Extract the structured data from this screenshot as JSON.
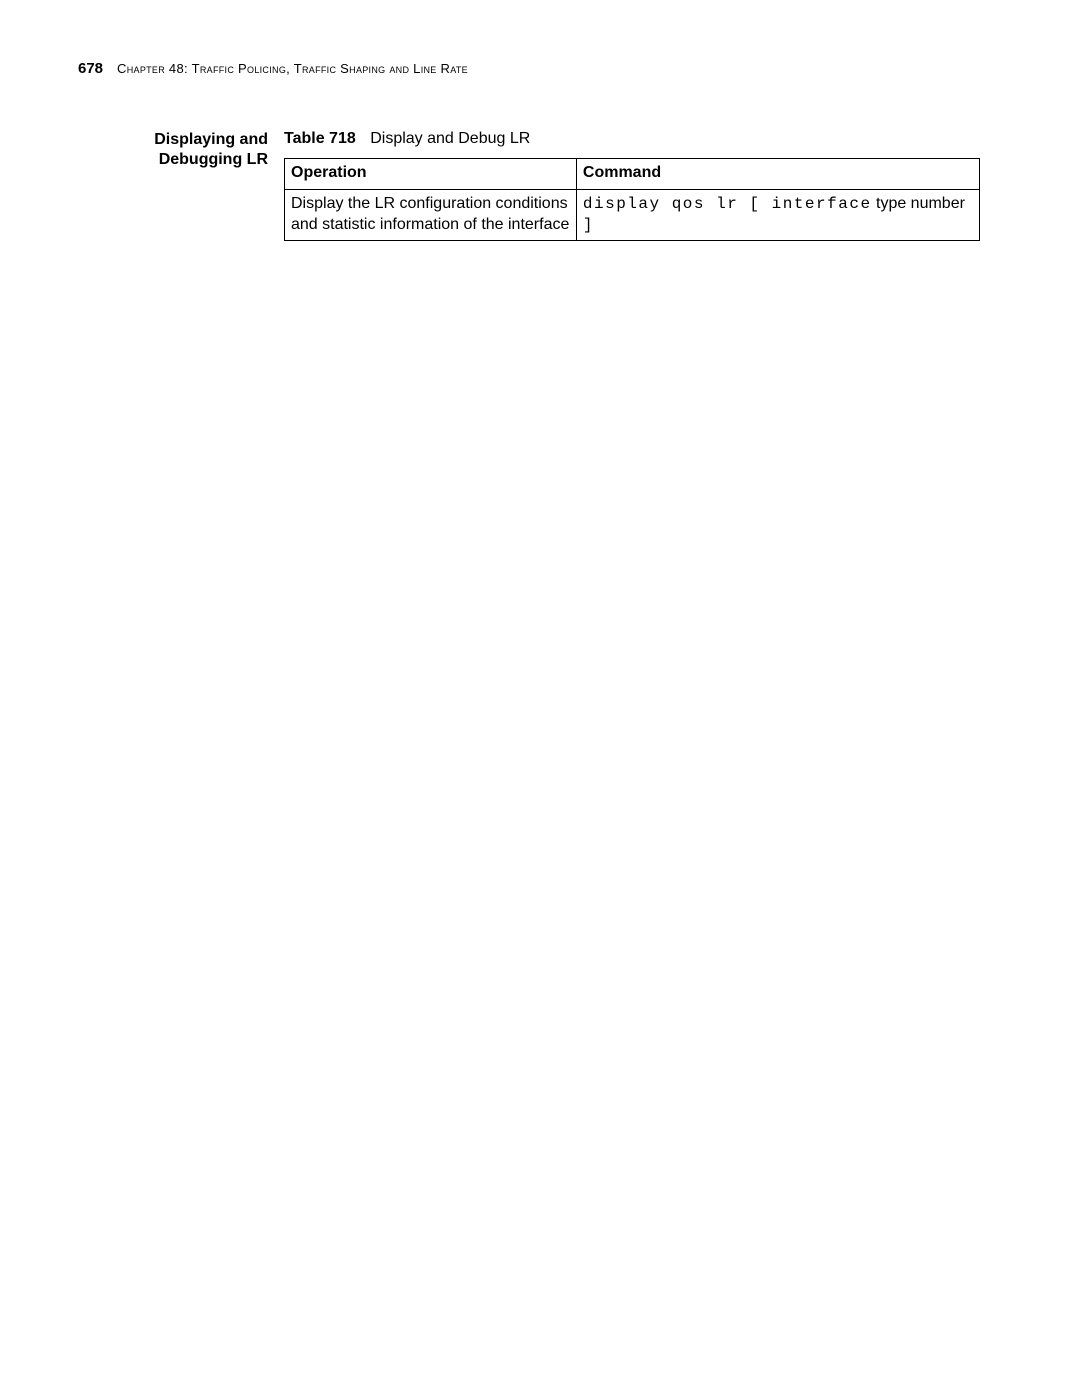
{
  "header": {
    "page_number": "678",
    "chapter_label": "Chapter 48:",
    "chapter_title": "Traffic Policing, Traffic Shaping and Line Rate"
  },
  "section": {
    "title_line1": "Displaying and",
    "title_line2": "Debugging LR"
  },
  "table": {
    "caption_label": "Table 718",
    "caption_text": "Display and Debug LR",
    "columns": {
      "operation": "Operation",
      "command": "Command"
    },
    "row": {
      "operation": "Display the LR configuration conditions and statistic information of the interface",
      "command_kw1": "display qos lr ",
      "command_br1": "[ ",
      "command_kw2": "interface",
      "command_arg1": " type number ",
      "command_br2": "]"
    }
  }
}
